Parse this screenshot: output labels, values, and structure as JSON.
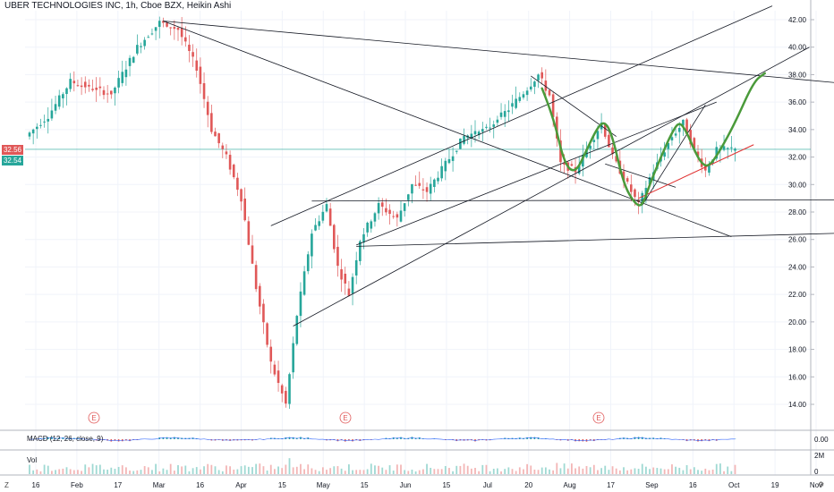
{
  "header": {
    "title": "UBER TECHNOLOGIES INC, 1h, Cboe BZX, Heikin Ashi"
  },
  "price_tags": {
    "last": "32.56",
    "previous": "32.54"
  },
  "indicators": {
    "macd_label": "MACD (12, 26, close, 9)",
    "volume_label": "Vol"
  },
  "right_axis": {
    "macd_value": "0.00",
    "volume_top": "2M",
    "volume_bottom": "0"
  },
  "corners": {
    "bottom_left": "Z",
    "bottom_right": "⚙"
  },
  "colors": {
    "up": "#26a69a",
    "down": "#e05858",
    "pattern": "#4a9a3a",
    "support": "#e03030",
    "lines": "#131722"
  },
  "chart_data": {
    "type": "candlestick",
    "title": "UBER TECHNOLOGIES INC, 1h, Cboe BZX, Heikin Ashi",
    "ylim": [
      12.6,
      43.2
    ],
    "y_ticks": [
      14.0,
      16.0,
      18.0,
      20.0,
      22.0,
      24.0,
      26.0,
      28.0,
      30.0,
      32.0,
      34.0,
      36.0,
      38.0,
      40.0,
      42.0
    ],
    "x_ticks": [
      "16",
      "Feb",
      "17",
      "Mar",
      "16",
      "Apr",
      "15",
      "May",
      "15",
      "Jun",
      "15",
      "Jul",
      "20",
      "Aug",
      "17",
      "Sep",
      "16",
      "Oct",
      "19",
      "Nov"
    ],
    "earnings_markers": [
      "E",
      "E",
      "E"
    ],
    "price_path": [
      [
        0,
        33.5
      ],
      [
        6,
        35.0
      ],
      [
        12,
        37.5
      ],
      [
        18,
        37.0
      ],
      [
        23,
        36.6
      ],
      [
        30,
        40.0
      ],
      [
        36,
        41.8
      ],
      [
        41,
        41.3
      ],
      [
        46,
        38.5
      ],
      [
        50,
        34.0
      ],
      [
        54,
        32.0
      ],
      [
        58,
        29.0
      ],
      [
        62,
        22.5
      ],
      [
        66,
        17.0
      ],
      [
        70,
        14.0
      ],
      [
        73,
        20.5
      ],
      [
        77,
        26.5
      ],
      [
        81,
        28.5
      ],
      [
        84,
        24.0
      ],
      [
        87,
        22.0
      ],
      [
        90,
        26.0
      ],
      [
        95,
        28.5
      ],
      [
        100,
        27.5
      ],
      [
        104,
        30.0
      ],
      [
        108,
        29.5
      ],
      [
        113,
        31.5
      ],
      [
        118,
        33.5
      ],
      [
        124,
        34.0
      ],
      [
        130,
        35.5
      ],
      [
        135,
        37.0
      ],
      [
        138,
        38.0
      ],
      [
        141,
        36.5
      ],
      [
        144,
        31.5
      ],
      [
        148,
        31.0
      ],
      [
        152,
        33.0
      ],
      [
        155,
        34.5
      ],
      [
        158,
        32.0
      ],
      [
        162,
        30.0
      ],
      [
        165,
        28.5
      ],
      [
        168,
        30.5
      ],
      [
        171,
        32.0
      ],
      [
        174,
        33.5
      ],
      [
        177,
        34.5
      ],
      [
        180,
        32.5
      ],
      [
        183,
        31.0
      ],
      [
        186,
        32.5
      ],
      [
        190,
        32.6
      ]
    ],
    "pattern_path": [
      [
        138,
        37.0
      ],
      [
        141,
        35.0
      ],
      [
        144,
        31.5
      ],
      [
        147,
        30.8
      ],
      [
        150,
        32.5
      ],
      [
        153,
        34.2
      ],
      [
        155,
        34.6
      ],
      [
        157,
        33.5
      ],
      [
        160,
        30.0
      ],
      [
        163,
        28.6
      ],
      [
        165,
        28.4
      ],
      [
        167,
        30.0
      ],
      [
        170,
        32.0
      ],
      [
        173,
        33.8
      ],
      [
        175,
        34.6
      ],
      [
        177,
        33.8
      ],
      [
        179,
        32.5
      ],
      [
        181,
        31.5
      ],
      [
        183,
        31.3
      ],
      [
        186,
        32.5
      ],
      [
        190,
        34.5
      ],
      [
        195,
        37.5
      ],
      [
        198,
        38.1
      ]
    ],
    "support_line": [
      [
        164,
        29.0
      ],
      [
        195,
        32.9
      ]
    ],
    "trend_lines": [
      [
        [
          36,
          41.9
        ],
        [
          189,
          26.2
        ]
      ],
      [
        [
          36,
          41.9
        ],
        [
          258,
          36.4
        ]
      ],
      [
        [
          76,
          28.8
        ],
        [
          237,
          28.9
        ]
      ],
      [
        [
          88,
          25.5
        ],
        [
          238,
          26.6
        ]
      ],
      [
        [
          65,
          27.0
        ],
        [
          200,
          43.0
        ]
      ],
      [
        [
          71,
          19.7
        ],
        [
          210,
          40.0
        ]
      ],
      [
        [
          88,
          25.6
        ],
        [
          185,
          36.0
        ]
      ],
      [
        [
          135,
          37.9
        ],
        [
          158,
          33.5
        ]
      ],
      [
        [
          165,
          28.5
        ],
        [
          182,
          35.8
        ]
      ],
      [
        [
          155,
          31.5
        ],
        [
          174,
          29.8
        ]
      ]
    ]
  }
}
